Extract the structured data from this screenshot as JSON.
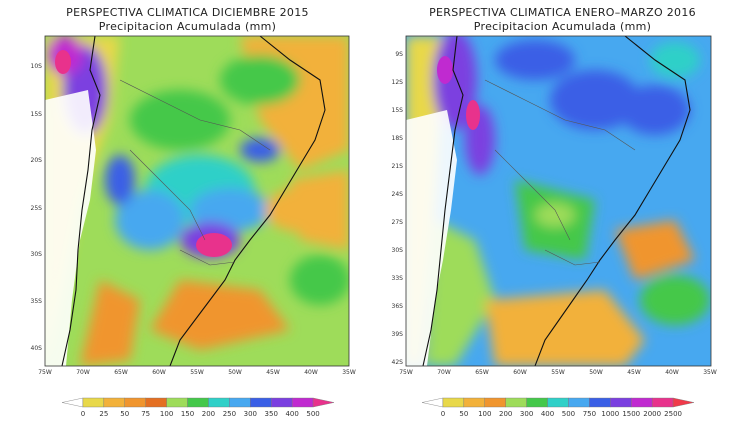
{
  "panels": [
    {
      "id": "diciembre",
      "title": "PERSPECTIVA CLIMATICA DICIEMBRE 2015",
      "subtitle": "Precipitacion Acumulada (mm)",
      "lat_labels": [
        "10S",
        "15S",
        "20S",
        "25S",
        "30S",
        "35S",
        "40S"
      ],
      "lon_labels": [
        "75W",
        "70W",
        "65W",
        "60W",
        "55W",
        "50W",
        "45W",
        "40W",
        "35W"
      ],
      "colorbar_labels": [
        "0",
        "25",
        "50",
        "75",
        "100",
        "150",
        "200",
        "250",
        "300",
        "350",
        "400",
        "500"
      ],
      "colorbar_colors": [
        "#ffffff",
        "#e8d84a",
        "#f2b13a",
        "#f0952e",
        "#e46f22",
        "#9edc5a",
        "#44c84a",
        "#2fd0c8",
        "#47a8f0",
        "#3a5fe6",
        "#7b3fe0",
        "#c02ad0",
        "#e8328c"
      ]
    },
    {
      "id": "enero_marzo",
      "title": "PERSPECTIVA CLIMATICA ENERO–MARZO 2016",
      "subtitle": "Precipitacion Acumulada (mm)",
      "lat_labels": [
        "9S",
        "12S",
        "15S",
        "18S",
        "21S",
        "24S",
        "27S",
        "30S",
        "33S",
        "36S",
        "39S",
        "42S"
      ],
      "lon_labels": [
        "75W",
        "70W",
        "65W",
        "60W",
        "55W",
        "50W",
        "45W",
        "40W",
        "35W"
      ],
      "colorbar_labels": [
        "0",
        "50",
        "100",
        "200",
        "300",
        "400",
        "500",
        "750",
        "1000",
        "1500",
        "2000",
        "2500"
      ],
      "colorbar_colors": [
        "#ffffff",
        "#e8d84a",
        "#f2b13a",
        "#f0952e",
        "#9edc5a",
        "#44c84a",
        "#2fd0c8",
        "#47a8f0",
        "#3a5fe6",
        "#7b3fe0",
        "#c02ad0",
        "#e8328c",
        "#f03a4a"
      ]
    }
  ]
}
